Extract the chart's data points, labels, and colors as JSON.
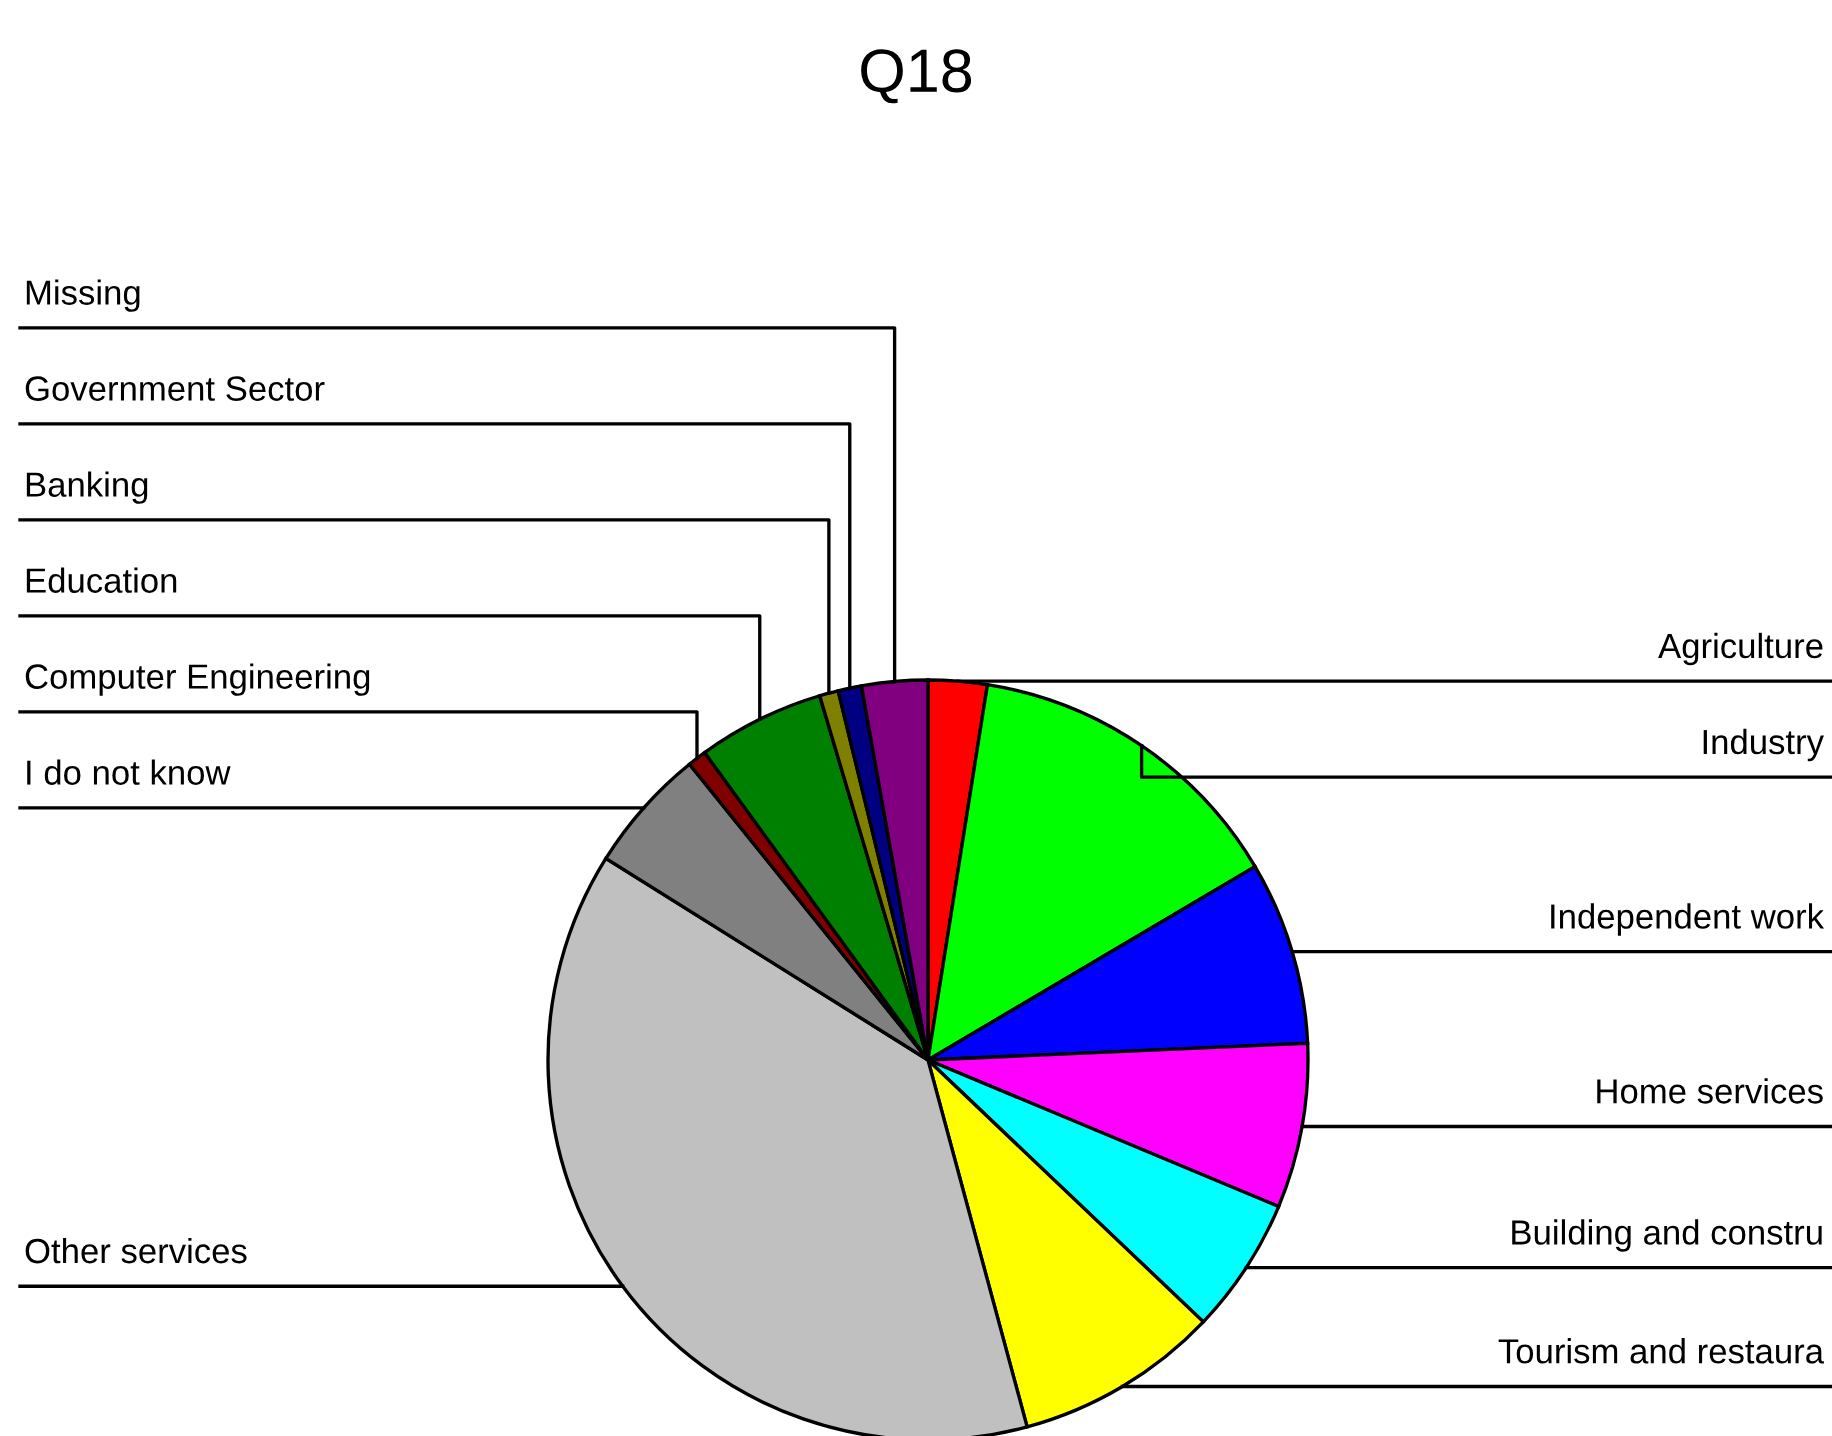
{
  "chart_data": {
    "type": "pie",
    "title": "Q18",
    "categories": [
      "Agriculture",
      "Industry",
      "Independent work",
      "Home services",
      "Building and constru",
      "Tourism and restaura",
      "Other services",
      "I do not know",
      "Computer Engineering",
      "Education",
      "Banking",
      "Government Sector",
      "Missing"
    ],
    "values": [
      2.5,
      14,
      7.8,
      7,
      5.8,
      8.7,
      38.1,
      5.3,
      0.8,
      5.4,
      0.8,
      1.0,
      2.8
    ],
    "colors": [
      "#ff0000",
      "#00ff00",
      "#0000ff",
      "#ff00ff",
      "#00ffff",
      "#ffff00",
      "#c0c0c0",
      "#808080",
      "#800000",
      "#008000",
      "#808000",
      "#000080",
      "#800080"
    ]
  }
}
